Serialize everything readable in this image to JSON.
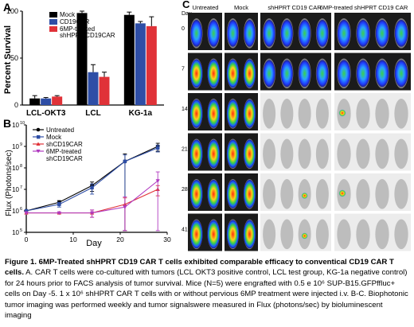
{
  "panelA": {
    "label": "A",
    "ylabel": "Percent Survival",
    "legend": [
      "Mock",
      "CD19CAR",
      "6MP-treated",
      "shHPRT CD19CAR"
    ],
    "colors": {
      "mock": "#000000",
      "cd19": "#2e4ea6",
      "sh": "#e03238"
    },
    "chart_data": {
      "type": "bar",
      "categories": [
        "LCL-OKT3",
        "LCL",
        "KG-1a"
      ],
      "series": [
        {
          "values": [
            7,
            98,
            96
          ],
          "err": [
            3,
            2,
            3
          ]
        },
        {
          "values": [
            7,
            35,
            87
          ],
          "err": [
            1,
            8,
            2
          ]
        },
        {
          "values": [
            9,
            30,
            84
          ],
          "err": [
            1,
            5,
            10
          ]
        }
      ],
      "ylim": [
        0,
        100
      ],
      "yticks": [
        "0",
        "50",
        "100"
      ]
    }
  },
  "panelB": {
    "label": "B",
    "ylabel": "Flux (Photons/sec)",
    "xlabel": "Day",
    "legend": [
      "Untreated",
      "Mock",
      "shCD19CAR",
      "6MP-treated",
      "shCD19CAR"
    ],
    "colors": {
      "untreated": "#000000",
      "mock": "#2e4ea6",
      "sh": "#e03238",
      "mp": "#b03ac0"
    },
    "chart_data": {
      "type": "line",
      "x": [
        0,
        7,
        14,
        21,
        28
      ],
      "series": [
        {
          "values": [
            1000000.0,
            2500000.0,
            15000000.0,
            200000000.0,
            1000000000.0
          ],
          "err": [
            200000.0,
            500000.0,
            7000000.0,
            250000000.0,
            400000000.0
          ]
        },
        {
          "values": [
            1000000.0,
            2000000.0,
            12000000.0,
            200000000.0,
            850000000.0
          ],
          "err": [
            200000.0,
            500000.0,
            6000000.0,
            200000000.0,
            300000000.0
          ]
        },
        {
          "values": [
            800000.0,
            800000.0,
            800000.0,
            2000000.0,
            10000000.0
          ],
          "err": [
            20000.0,
            20000.0,
            300000.0,
            2000000.0,
            5000000.0
          ]
        },
        {
          "values": [
            800000.0,
            800000.0,
            800000.0,
            1500000.0,
            25000000.0
          ],
          "err": [
            20000.0,
            20000.0,
            300000.0,
            3000000.0,
            40000000.0
          ]
        }
      ],
      "xticks": [
        "0",
        "10",
        "20",
        "30"
      ],
      "ylim": [
        100000.0,
        10000000000.0
      ],
      "yticks": [
        "10",
        "10",
        "10",
        "10",
        "10",
        "10"
      ],
      "yexp": [
        "5",
        "6",
        "7",
        "8",
        "9",
        "10"
      ]
    }
  },
  "panelC": {
    "label": "C",
    "day_label": "Day",
    "columns": [
      "Untreated",
      "Mock",
      "shHPRT CD19 CAR",
      "6MP-treated shHPRT CD19 CAR"
    ],
    "days": [
      "0",
      "7",
      "14",
      "21",
      "28",
      "41"
    ]
  },
  "caption": {
    "bold": "Figure 1. 6MP-Treated shHPRT CD19 CAR T cells exhibited comparable efficacy to conventical CD19 CAR T cells.",
    "body": " A. CAR T cells were co-cultured with tumors (LCL OKT3 positive control, LCL test group, KG-1a negative control) for 24 hours prior to FACS analysis of tumor survival. Mice (N=5) were engrafted with 0.5 e 10⁶ SUP-B15.GFPffluc+ cells on Day -5. 1 x 10⁶ shHPRT CAR T cells with or without pervious 6MP treatment were injected i.v. B-C. Biophotonic tumor imaging was performed weekly and tumor signalswere measured in Flux (photons/sec) by bioluminescent imaging"
  }
}
